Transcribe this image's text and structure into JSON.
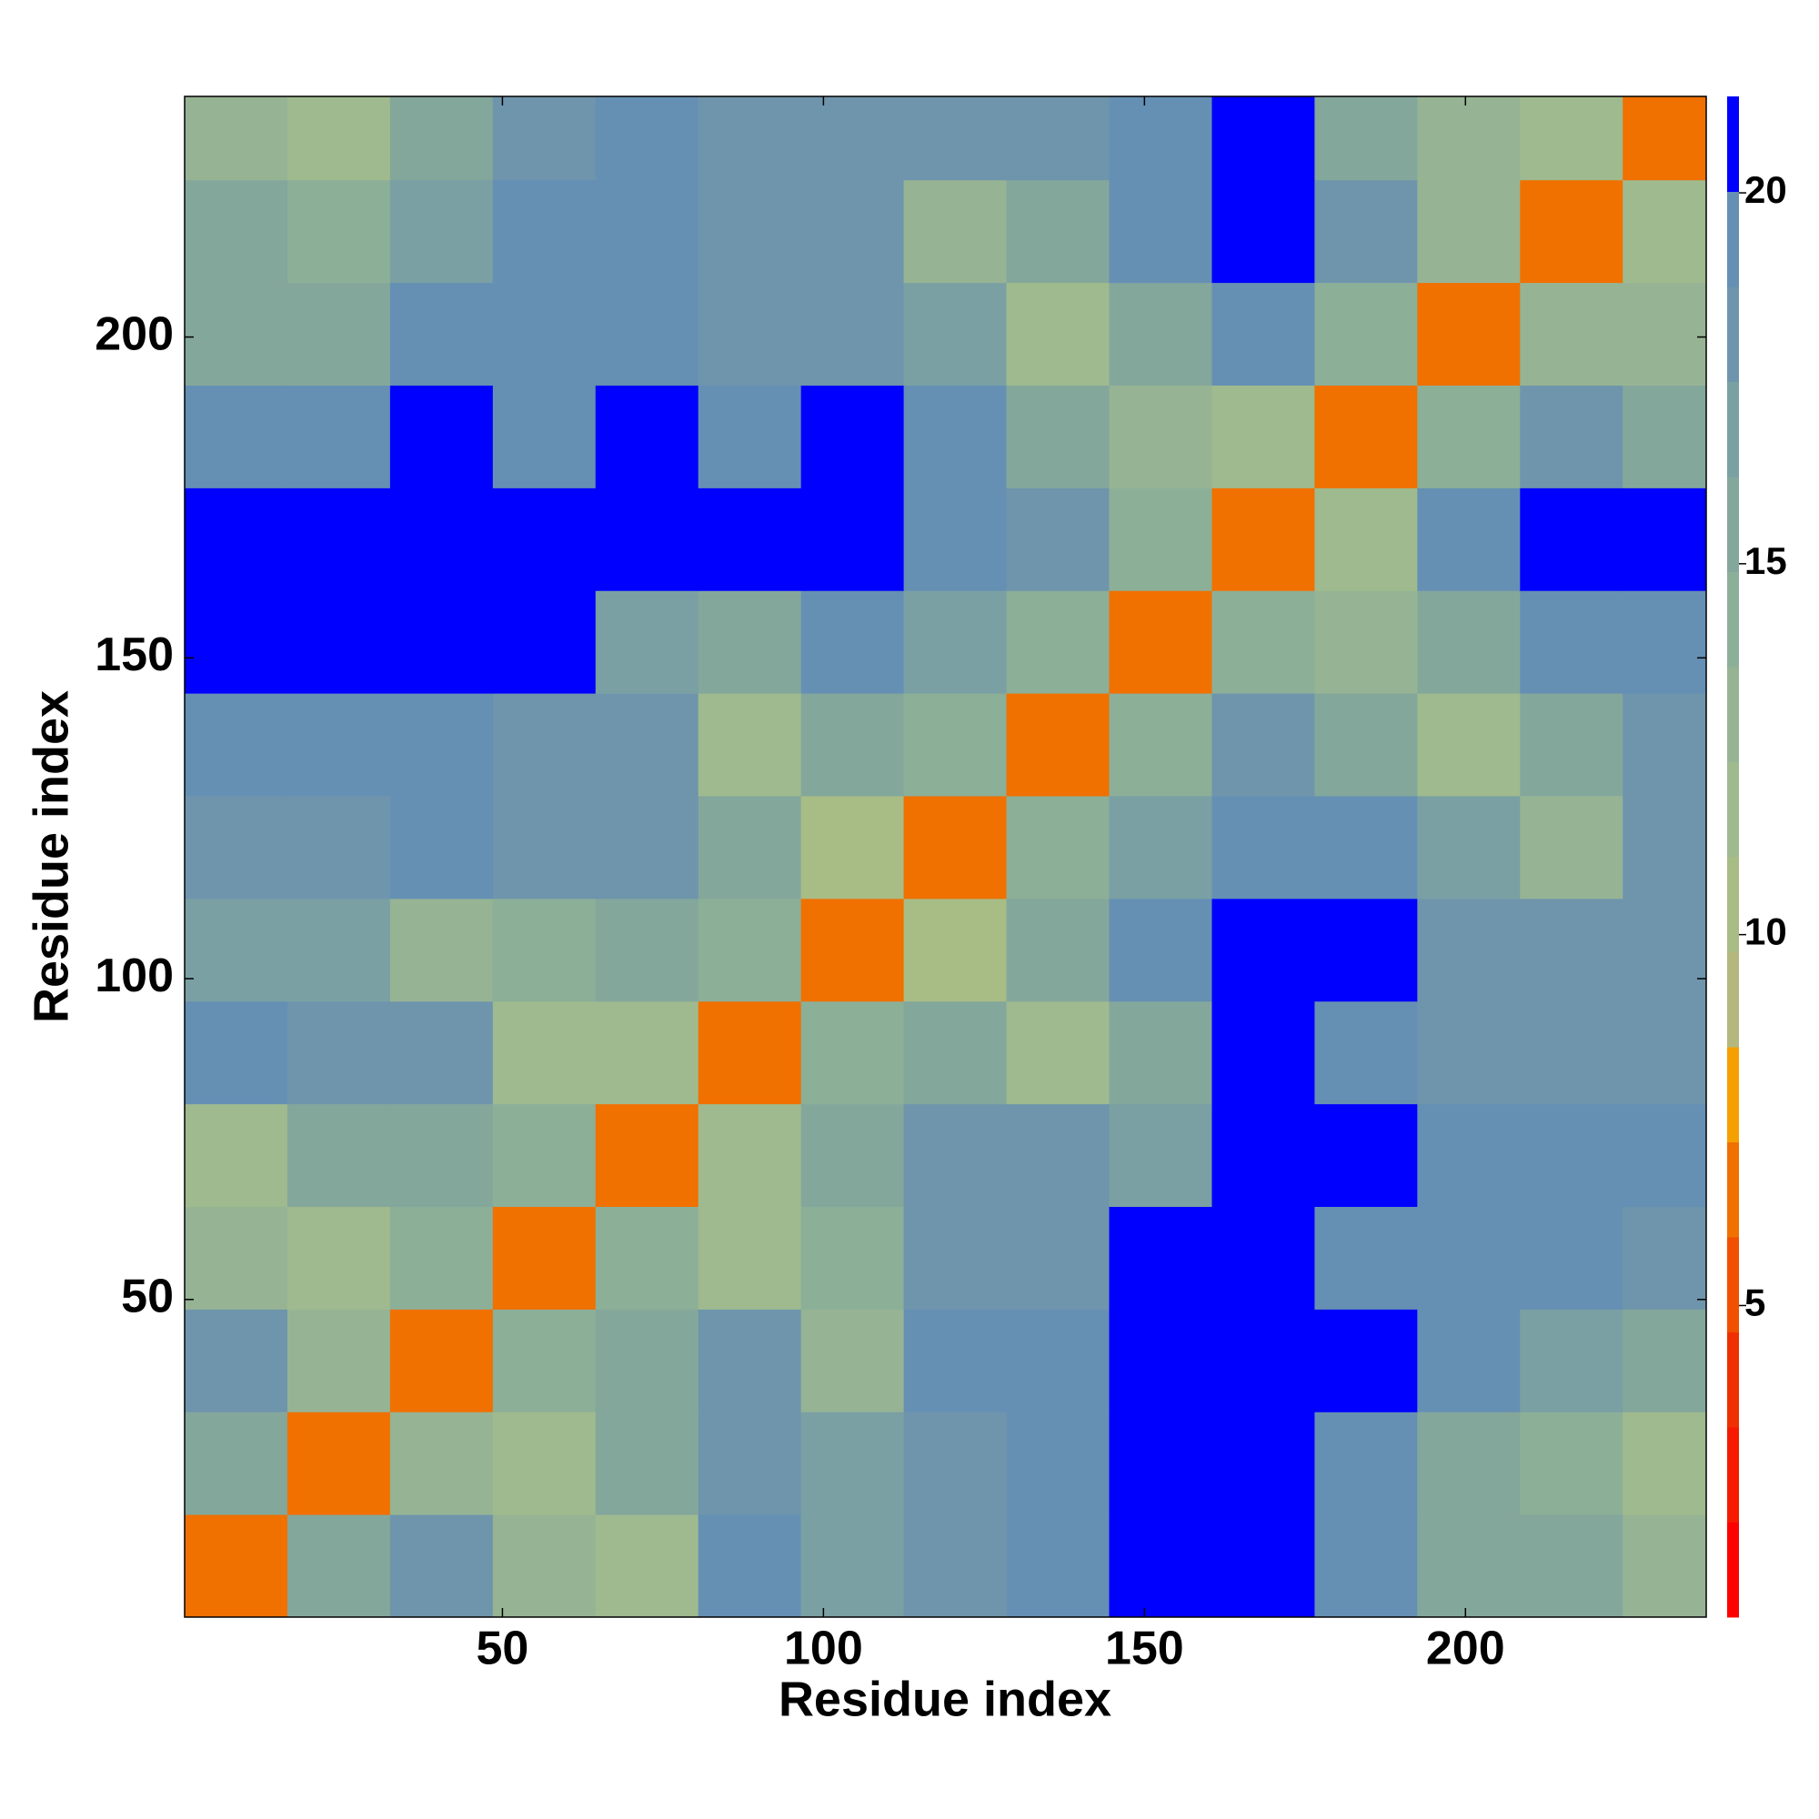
{
  "chart_data": {
    "type": "heatmap",
    "x_label": "Residue index",
    "y_label": "Residue index",
    "x_edges": [
      0.5,
      16.5,
      32.5,
      48.5,
      64.5,
      80.5,
      96.5,
      112.5,
      128.5,
      144.5,
      160.5,
      176.5,
      192.5,
      208.5,
      224.5,
      237.5
    ],
    "y_edges": [
      0.5,
      16.5,
      32.5,
      48.5,
      64.5,
      80.5,
      96.5,
      112.5,
      128.5,
      144.5,
      160.5,
      176.5,
      192.5,
      208.5,
      224.5,
      237.5
    ],
    "z": [
      [
        6,
        15,
        18,
        13,
        12,
        19,
        17,
        18,
        19,
        21,
        21,
        19,
        16,
        15,
        13
      ],
      [
        15,
        6,
        13,
        12,
        16,
        18,
        17,
        18,
        19,
        21,
        21,
        20,
        16,
        14,
        12
      ],
      [
        18,
        13,
        6,
        14,
        16,
        18,
        13,
        19,
        20,
        21,
        21,
        21,
        19,
        17,
        16
      ],
      [
        13,
        12,
        14,
        6,
        14,
        12,
        14,
        18,
        18,
        21,
        21,
        20,
        19,
        19,
        18
      ],
      [
        12,
        16,
        16,
        14,
        6,
        12,
        16,
        18,
        18,
        17,
        21,
        21,
        20,
        19,
        19
      ],
      [
        19,
        18,
        18,
        12,
        12,
        6,
        14,
        15,
        12,
        15,
        21,
        20,
        18,
        18,
        18
      ],
      [
        17,
        17,
        13,
        14,
        16,
        14,
        6,
        11,
        15,
        19,
        21,
        21,
        18,
        18,
        18
      ],
      [
        18,
        18,
        19,
        18,
        18,
        15,
        11,
        6,
        14,
        17,
        20,
        19,
        17,
        13,
        18
      ],
      [
        19,
        19,
        20,
        18,
        18,
        12,
        15,
        14,
        6,
        14,
        18,
        15,
        12,
        16,
        18
      ],
      [
        21,
        21,
        21,
        21,
        17,
        15,
        19,
        17,
        14,
        6,
        14,
        13,
        15,
        19,
        20
      ],
      [
        21,
        21,
        21,
        21,
        21,
        21,
        21,
        20,
        18,
        14,
        6,
        12,
        19,
        21,
        21
      ],
      [
        19,
        20,
        21,
        20,
        21,
        20,
        21,
        19,
        15,
        13,
        12,
        6,
        14,
        18,
        16
      ],
      [
        16,
        16,
        19,
        19,
        20,
        18,
        18,
        17,
        12,
        15,
        19,
        14,
        6,
        13,
        13
      ],
      [
        15,
        14,
        17,
        19,
        19,
        18,
        18,
        13,
        16,
        19,
        21,
        18,
        13,
        6,
        12
      ],
      [
        13,
        12,
        16,
        18,
        19,
        18,
        18,
        18,
        18,
        20,
        21,
        16,
        13,
        12,
        6
      ]
    ],
    "xlim": [
      0.5,
      237.5
    ],
    "ylim": [
      0.5,
      237.5
    ],
    "xticks": [
      50,
      100,
      150,
      200
    ],
    "yticks": [
      50,
      100,
      150,
      200
    ],
    "zlim": [
      0.8,
      21.3
    ],
    "zticks": [
      5,
      10,
      15,
      20
    ],
    "colormap": [
      "#ff0000",
      "#f51a00",
      "#f03000",
      "#f05000",
      "#f07000",
      "#f5a000",
      "#b4b87e",
      "#a8bc86",
      "#9fba8e",
      "#96b494",
      "#8caf98",
      "#84a79c",
      "#7aa0a4",
      "#6f95ac",
      "#6590b4",
      "#0000ff"
    ]
  }
}
